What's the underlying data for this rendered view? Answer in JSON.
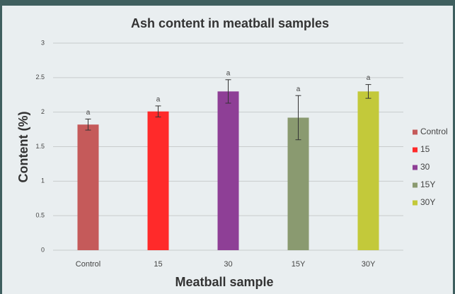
{
  "chart_data": {
    "type": "bar",
    "title": "Ash content in meatball samples",
    "x_label": "Meatball sample",
    "y_label": "Content (%)",
    "categories": [
      "Control",
      "15",
      "30",
      "15Y",
      "30Y"
    ],
    "values": [
      1.82,
      2.01,
      2.3,
      1.92,
      2.3
    ],
    "errors": [
      0.08,
      0.08,
      0.17,
      0.32,
      0.1
    ],
    "annotations": [
      "a",
      "a",
      "a",
      "a",
      "a"
    ],
    "colors": [
      "#c55a5a",
      "#ff2a2a",
      "#8e3f96",
      "#8a9a70",
      "#c3c93a"
    ],
    "ylim": [
      0,
      3
    ],
    "yticks": [
      0,
      0.5,
      1,
      1.5,
      2,
      2.5,
      3
    ],
    "grid": true,
    "legend": "right"
  }
}
